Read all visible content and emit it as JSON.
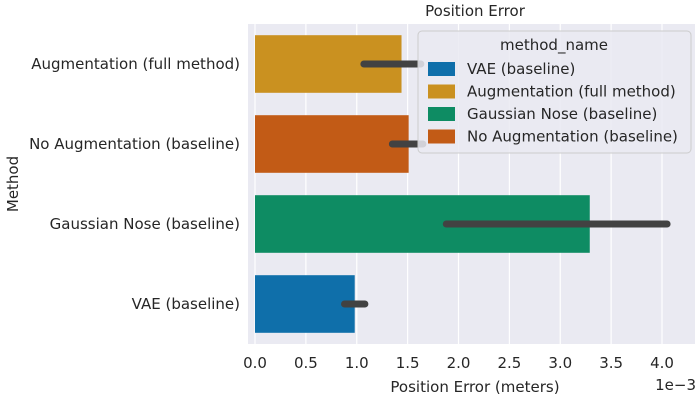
{
  "chart_data": {
    "type": "bar",
    "orientation": "horizontal",
    "title": "Position Error",
    "xlabel": "Position Error (meters)",
    "ylabel": "Method",
    "x_offset_label": "1e−3",
    "xlim": [
      0,
      4.15
    ],
    "xticks": [
      "0.0",
      "0.5",
      "1.0",
      "1.5",
      "2.0",
      "2.5",
      "3.0",
      "3.5",
      "4.0"
    ],
    "grid": true,
    "categories": [
      "Augmentation (full method)",
      "No Augmentation (baseline)",
      "Gaussian Nose (baseline)",
      "VAE (baseline)"
    ],
    "values": [
      1.44,
      1.51,
      3.29,
      0.98
    ],
    "error_bars": [
      [
        1.07,
        1.63
      ],
      [
        1.35,
        1.65
      ],
      [
        1.88,
        4.05
      ],
      [
        0.88,
        1.08
      ]
    ],
    "colors": [
      "#ca9120",
      "#c25b16",
      "#0e8c63",
      "#0f6faa"
    ],
    "legend": {
      "title": "method_name",
      "position": "top-right",
      "entries": [
        {
          "label": "VAE (baseline)",
          "color": "#0f6faa"
        },
        {
          "label": "Augmentation (full method)",
          "color": "#ca9120"
        },
        {
          "label": "Gaussian Nose (baseline)",
          "color": "#0e8c63"
        },
        {
          "label": "No Augmentation (baseline)",
          "color": "#c25b16"
        }
      ]
    }
  }
}
